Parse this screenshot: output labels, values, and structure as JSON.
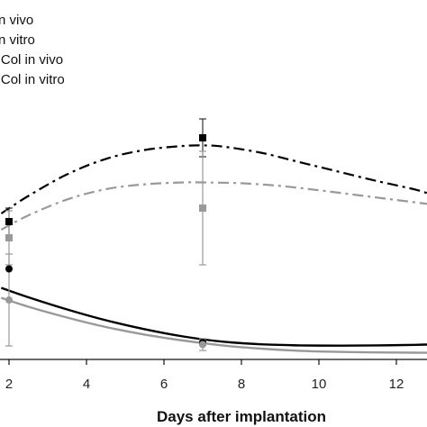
{
  "chart_data": {
    "type": "line",
    "xlabel": "Days after implantation",
    "ylabel": "",
    "title": "",
    "xlim": [
      1.8,
      13
    ],
    "ylim": [
      0,
      10
    ],
    "x_ticks": [
      "2",
      "4",
      "6",
      "8",
      "10",
      "12"
    ],
    "grid": false,
    "legend_position": "top-left",
    "legend": [
      {
        "label": "n vivo",
        "color": "#000000",
        "style": "solid"
      },
      {
        "label": "n vitro",
        "color": "#999999",
        "style": "solid"
      },
      {
        "label": "ʹCol in vivo",
        "color": "#000000",
        "style": "dashdot"
      },
      {
        "label": "ʹCol in vitro",
        "color": "#999999",
        "style": "dashdot"
      }
    ],
    "series": [
      {
        "color": "#000000",
        "style": "dashdot",
        "marker": "square",
        "points": [
          {
            "x": 2,
            "y": 5.1,
            "err": 0.5
          },
          {
            "x": 7,
            "y": 8.2,
            "err": 0.7
          }
        ],
        "curve_x": [
          1.8,
          2.5,
          3.5,
          4.5,
          5.5,
          6.5,
          7,
          7.5,
          8.5,
          9.5,
          10.5,
          11.5,
          12.5,
          13
        ],
        "curve_y": [
          5.4,
          6.05,
          6.85,
          7.42,
          7.75,
          7.9,
          7.92,
          7.88,
          7.65,
          7.3,
          6.95,
          6.6,
          6.28,
          6.05
        ]
      },
      {
        "color": "#999999",
        "style": "dashdot",
        "marker": "square",
        "points": [
          {
            "x": 2,
            "y": 4.5,
            "err": 1.0
          },
          {
            "x": 7,
            "y": 5.6,
            "err": 2.1
          }
        ],
        "curve_x": [
          1.8,
          2.5,
          3.5,
          4.5,
          5.5,
          6.5,
          7,
          8,
          9,
          10,
          11,
          12,
          13
        ],
        "curve_y": [
          4.8,
          5.33,
          5.92,
          6.3,
          6.48,
          6.55,
          6.55,
          6.52,
          6.42,
          6.26,
          6.08,
          5.9,
          5.72
        ]
      },
      {
        "color": "#000000",
        "style": "solid",
        "marker": "circle",
        "points": [
          {
            "x": 2,
            "y": 3.35,
            "err": 0
          },
          {
            "x": 7,
            "y": 0.63,
            "err": 0.1
          }
        ],
        "curve_x": [
          1.8,
          2.5,
          3.5,
          4.5,
          5.5,
          6.5,
          7.5,
          8.5,
          9.5,
          10.5,
          11.5,
          12.5,
          13
        ],
        "curve_y": [
          2.65,
          2.3,
          1.85,
          1.45,
          1.12,
          0.85,
          0.66,
          0.56,
          0.52,
          0.51,
          0.52,
          0.54,
          0.56
        ]
      },
      {
        "color": "#999999",
        "style": "solid",
        "marker": "circle",
        "points": [
          {
            "x": 2,
            "y": 2.2,
            "err": 1.7
          },
          {
            "x": 7,
            "y": 0.55,
            "err": 0.22
          }
        ],
        "curve_x": [
          1.8,
          2.5,
          3.5,
          4.5,
          5.5,
          6.5,
          7.5,
          8.5,
          9.5,
          10.5,
          11.5,
          12.5,
          13
        ],
        "curve_y": [
          2.28,
          1.95,
          1.55,
          1.2,
          0.92,
          0.7,
          0.52,
          0.4,
          0.32,
          0.28,
          0.26,
          0.25,
          0.25
        ]
      }
    ]
  }
}
